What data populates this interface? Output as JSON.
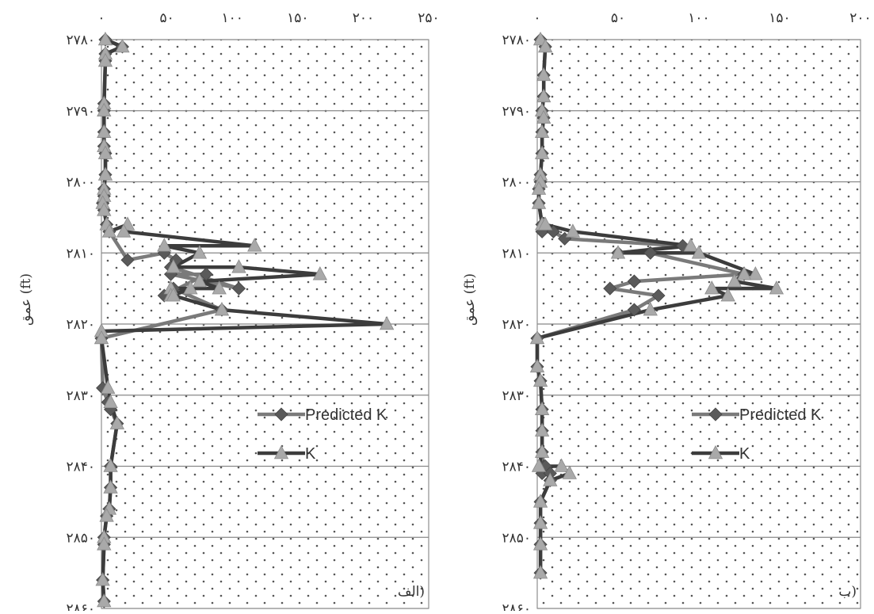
{
  "chart_data": [
    {
      "type": "line",
      "panel_label": "الف)",
      "ylabel": "عمق (ft)",
      "x_ticks": [
        "۰",
        "۵۰",
        "۱۰۰",
        "۱۵۰",
        "۲۰۰",
        "۲۵۰"
      ],
      "x_tick_values": [
        0,
        50,
        100,
        150,
        200,
        250
      ],
      "y_ticks": [
        "۲۷۸۰",
        "۲۷۹۰",
        "۲۸۰۰",
        "۲۸۱۰",
        "۲۸۲۰",
        "۲۸۳۰",
        "۲۸۴۰",
        "۲۸۵۰",
        "۲۸۶۰"
      ],
      "y_tick_values": [
        2780,
        2790,
        2800,
        2810,
        2820,
        2830,
        2840,
        2850,
        2860
      ],
      "xlim": [
        0,
        250
      ],
      "ylim": [
        2780,
        2860
      ],
      "grid": true,
      "legend": [
        "Predicted K",
        "K"
      ],
      "series": [
        {
          "name": "Predicted K",
          "x": [
            3,
            16,
            3,
            3,
            2,
            2,
            2,
            2,
            3,
            3,
            2,
            2,
            1,
            2,
            4,
            6,
            20,
            48,
            57,
            53,
            105,
            53,
            80,
            48,
            55,
            92,
            0,
            1,
            5,
            7,
            12,
            7,
            7,
            6,
            4,
            2,
            2,
            1,
            2
          ],
          "y": [
            2780,
            2781,
            2782,
            2783,
            2789,
            2790,
            2793,
            2795,
            2796,
            2799,
            2801,
            2802,
            2803,
            2804,
            2806,
            2807,
            2811,
            2810,
            2811,
            2812,
            2815,
            2813,
            2813,
            2816,
            2815,
            2818,
            2822,
            2829,
            2831,
            2832,
            2834,
            2840,
            2843,
            2846,
            2847,
            2850,
            2851,
            2856,
            2859
          ]
        },
        {
          "name": "K",
          "x": [
            3,
            16,
            3,
            3,
            2,
            2,
            2,
            2,
            3,
            3,
            2,
            2,
            1,
            2,
            4,
            6,
            20,
            17,
            117,
            48,
            75,
            55,
            105,
            167,
            75,
            90,
            53,
            53,
            68,
            55,
            92,
            218,
            0,
            0,
            5,
            7,
            12,
            7,
            7,
            6,
            4,
            2,
            2,
            1,
            2
          ],
          "y": [
            2780,
            2781,
            2782,
            2783,
            2789,
            2790,
            2793,
            2795,
            2796,
            2799,
            2801,
            2802,
            2803,
            2804,
            2806,
            2807,
            2806,
            2807,
            2809,
            2809,
            2810,
            2812,
            2812,
            2813,
            2814,
            2815,
            2815,
            2816,
            2815,
            2816,
            2818,
            2820,
            2821,
            2822,
            2829,
            2831,
            2834,
            2840,
            2843,
            2846,
            2847,
            2850,
            2851,
            2856,
            2859
          ]
        }
      ]
    },
    {
      "type": "line",
      "panel_label": "ب)",
      "ylabel": "عمق (ft)",
      "x_ticks": [
        "۰",
        "۵۰",
        "۱۰۰",
        "۱۵۰",
        "۲۰۰"
      ],
      "x_tick_values": [
        0,
        50,
        100,
        150,
        200
      ],
      "y_ticks": [
        "۲۷۸۰",
        "۲۷۹۰",
        "۲۸۰۰",
        "۲۸۱۰",
        "۲۸۲۰",
        "۲۸۳۰",
        "۲۸۴۰",
        "۲۸۵۰",
        "۲۸۶۰"
      ],
      "y_tick_values": [
        2780,
        2790,
        2800,
        2810,
        2820,
        2830,
        2840,
        2850,
        2860
      ],
      "xlim": [
        0,
        200
      ],
      "ylim": [
        2780,
        2860
      ],
      "grid": true,
      "legend": [
        "Predicted K",
        "K"
      ],
      "series": [
        {
          "name": "Predicted K",
          "x": [
            2,
            5,
            4,
            4,
            3,
            4,
            3,
            3,
            2,
            2,
            1,
            1,
            3,
            3,
            10,
            17,
            90,
            50,
            70,
            128,
            60,
            60,
            45,
            75,
            60,
            0,
            0,
            2,
            3,
            3,
            3,
            4,
            5,
            3,
            8,
            8,
            2,
            2,
            2,
            2
          ],
          "y": [
            2780,
            2781,
            2785,
            2788,
            2790,
            2791,
            2793,
            2796,
            2799,
            2800,
            2801,
            2803,
            2806,
            2807,
            2807,
            2808,
            2809,
            2810,
            2810,
            2813,
            2814,
            2814,
            2815,
            2816,
            2818,
            2822,
            2826,
            2828,
            2832,
            2835,
            2838,
            2840,
            2840,
            2841,
            2841,
            2842,
            2845,
            2848,
            2851,
            2855
          ]
        },
        {
          "name": "K",
          "x": [
            2,
            5,
            4,
            4,
            3,
            4,
            3,
            3,
            2,
            2,
            1,
            1,
            3,
            5,
            22,
            95,
            50,
            100,
            135,
            128,
            122,
            148,
            108,
            118,
            70,
            0,
            0,
            2,
            3,
            3,
            3,
            1,
            15,
            20,
            8,
            2,
            2,
            2,
            2
          ],
          "y": [
            2780,
            2781,
            2785,
            2788,
            2790,
            2791,
            2793,
            2796,
            2799,
            2800,
            2801,
            2803,
            2806,
            2806,
            2807,
            2809,
            2810,
            2810,
            2813,
            2813,
            2814,
            2815,
            2815,
            2816,
            2818,
            2822,
            2826,
            2828,
            2832,
            2835,
            2838,
            2840,
            2840,
            2841,
            2842,
            2845,
            2848,
            2851,
            2855
          ]
        }
      ]
    }
  ],
  "colors": {
    "predicted": "#7a7a7a",
    "actual": "#3c3c3c",
    "marker": "#a9a9a9",
    "grid": "#888888",
    "dot": "#555555"
  }
}
